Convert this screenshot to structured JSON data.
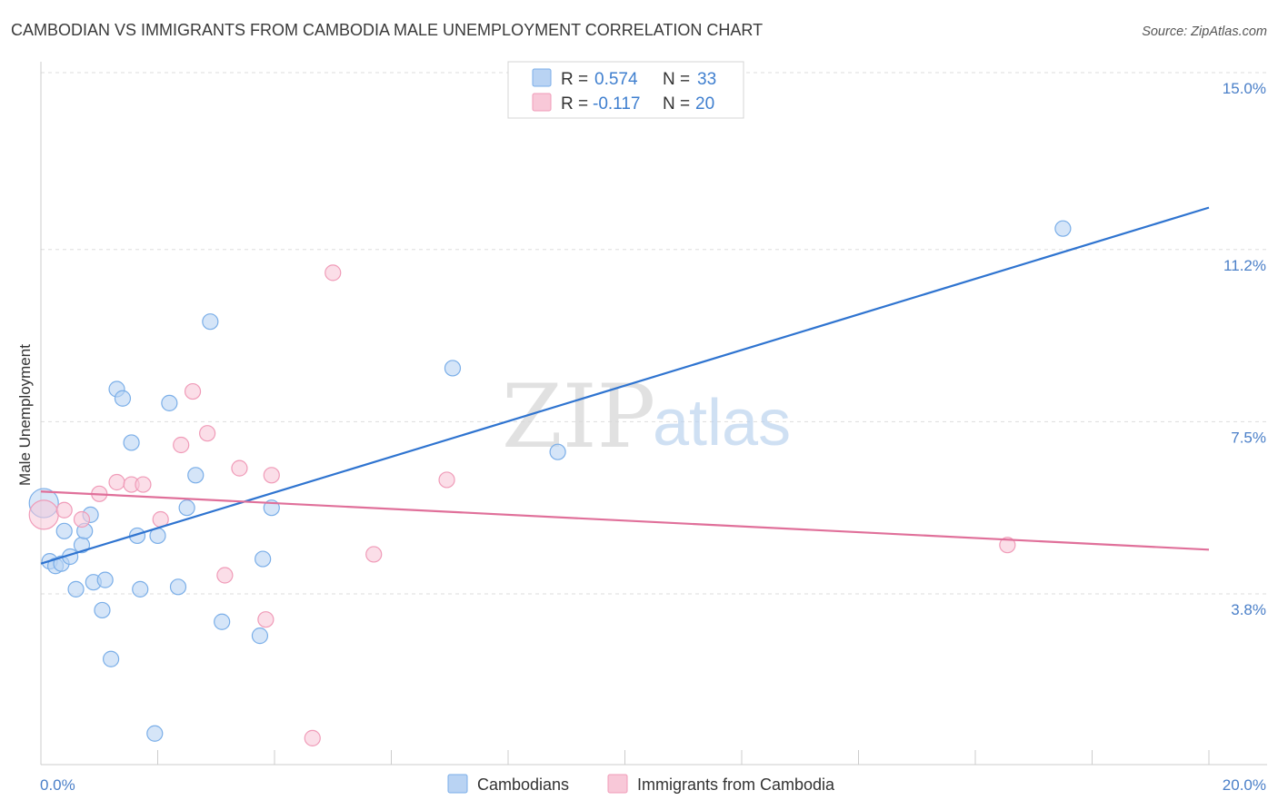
{
  "chart_data": {
    "type": "scatter",
    "title": "CAMBODIAN VS IMMIGRANTS FROM CAMBODIA MALE UNEMPLOYMENT CORRELATION CHART",
    "source": "Source: ZipAtlas.com",
    "ylabel": "Male Unemployment",
    "xlabel": "",
    "xlim": [
      0,
      20
    ],
    "ylim": [
      0,
      15.5
    ],
    "x_tick_labels": [
      {
        "value": 0,
        "label": "0.0%"
      },
      {
        "value": 20,
        "label": "20.0%"
      }
    ],
    "x_minor_ticks": [
      0,
      2,
      4,
      6,
      8,
      10,
      12,
      14,
      16,
      18,
      20
    ],
    "y_ticks": [
      {
        "value": 3.8,
        "label": "3.8%"
      },
      {
        "value": 7.5,
        "label": "7.5%"
      },
      {
        "value": 11.2,
        "label": "11.2%"
      },
      {
        "value": 15.0,
        "label": "15.0%"
      }
    ],
    "grid": true,
    "legend": {
      "placement": "top-center",
      "rows": [
        {
          "r_label": "R = ",
          "r_value": "0.574",
          "n_label": "N = ",
          "n_value": "33"
        },
        {
          "r_label": "R = ",
          "r_value": "-0.117",
          "n_label": "N = ",
          "n_value": "20"
        }
      ]
    },
    "watermark": {
      "zip": "ZIP",
      "atlas": "atlas"
    },
    "series": [
      {
        "name": "Cambodians",
        "color": "#7aaee8",
        "fill": "#b9d3f3",
        "line_color": "#2f74d0",
        "trend": {
          "x": [
            0,
            20
          ],
          "y": [
            4.45,
            12.1
          ]
        },
        "points": [
          {
            "x": 0.05,
            "y": 5.75,
            "big": true
          },
          {
            "x": 0.15,
            "y": 4.5
          },
          {
            "x": 0.25,
            "y": 4.4
          },
          {
            "x": 0.35,
            "y": 4.45
          },
          {
            "x": 0.4,
            "y": 5.15
          },
          {
            "x": 0.5,
            "y": 4.6
          },
          {
            "x": 0.6,
            "y": 3.9
          },
          {
            "x": 0.7,
            "y": 4.85
          },
          {
            "x": 0.75,
            "y": 5.15
          },
          {
            "x": 0.85,
            "y": 5.5
          },
          {
            "x": 0.9,
            "y": 4.05
          },
          {
            "x": 1.05,
            "y": 3.45
          },
          {
            "x": 1.1,
            "y": 4.1
          },
          {
            "x": 1.2,
            "y": 2.4
          },
          {
            "x": 1.3,
            "y": 8.2
          },
          {
            "x": 1.4,
            "y": 8.0
          },
          {
            "x": 1.55,
            "y": 7.05
          },
          {
            "x": 1.65,
            "y": 5.05
          },
          {
            "x": 1.7,
            "y": 3.9
          },
          {
            "x": 1.95,
            "y": 0.8
          },
          {
            "x": 2.0,
            "y": 5.05
          },
          {
            "x": 2.2,
            "y": 7.9
          },
          {
            "x": 2.35,
            "y": 3.95
          },
          {
            "x": 2.5,
            "y": 5.65
          },
          {
            "x": 2.65,
            "y": 6.35
          },
          {
            "x": 2.9,
            "y": 9.65
          },
          {
            "x": 3.1,
            "y": 3.2
          },
          {
            "x": 3.75,
            "y": 2.9
          },
          {
            "x": 3.8,
            "y": 4.55
          },
          {
            "x": 3.95,
            "y": 5.65
          },
          {
            "x": 7.05,
            "y": 8.65
          },
          {
            "x": 8.85,
            "y": 6.85
          },
          {
            "x": 17.5,
            "y": 11.65
          }
        ]
      },
      {
        "name": "Immigrants from Cambodia",
        "color": "#f09bb8",
        "fill": "#f8c8d8",
        "line_color": "#e0709a",
        "trend": {
          "x": [
            0,
            20
          ],
          "y": [
            6.0,
            4.75
          ]
        },
        "points": [
          {
            "x": 0.05,
            "y": 5.5,
            "big": true
          },
          {
            "x": 0.4,
            "y": 5.6
          },
          {
            "x": 0.7,
            "y": 5.4
          },
          {
            "x": 1.0,
            "y": 5.95
          },
          {
            "x": 1.3,
            "y": 6.2
          },
          {
            "x": 1.55,
            "y": 6.15
          },
          {
            "x": 1.75,
            "y": 6.15
          },
          {
            "x": 2.05,
            "y": 5.4
          },
          {
            "x": 2.4,
            "y": 7.0
          },
          {
            "x": 2.6,
            "y": 8.15
          },
          {
            "x": 2.85,
            "y": 7.25
          },
          {
            "x": 3.15,
            "y": 4.2
          },
          {
            "x": 3.4,
            "y": 6.5
          },
          {
            "x": 3.85,
            "y": 3.25
          },
          {
            "x": 3.95,
            "y": 6.35
          },
          {
            "x": 4.65,
            "y": 0.7
          },
          {
            "x": 5.0,
            "y": 10.7
          },
          {
            "x": 5.7,
            "y": 4.65
          },
          {
            "x": 6.95,
            "y": 6.25
          },
          {
            "x": 16.55,
            "y": 4.85
          }
        ]
      }
    ]
  },
  "colors": {
    "grid": "#dddddd",
    "axis": "#cccccc",
    "tick_label": "#4a7fc8"
  }
}
